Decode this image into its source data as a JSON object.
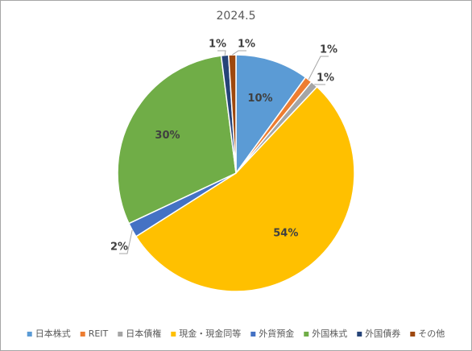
{
  "chart_data": {
    "type": "pie",
    "title": "2024.5",
    "categories": [
      "日本株式",
      "REIT",
      "日本債権",
      "現金・現金同等",
      "外貨預金",
      "外国株式",
      "外国債券",
      "その他"
    ],
    "values": [
      10,
      1,
      1,
      54,
      2,
      30,
      1,
      1
    ],
    "value_labels": [
      "10%",
      "1%",
      "1%",
      "54%",
      "2%",
      "30%",
      "1%",
      "1%"
    ],
    "colors": [
      "#5b9bd5",
      "#ed7d31",
      "#a5a5a5",
      "#ffc000",
      "#4472c4",
      "#70ad47",
      "#264478",
      "#9e480e"
    ],
    "legend": "bottom"
  }
}
